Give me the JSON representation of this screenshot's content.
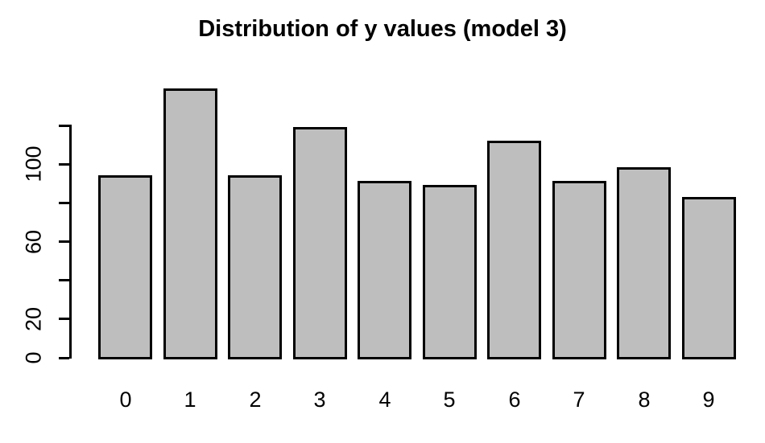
{
  "title": "Distribution of y values (model 3)",
  "chart_data": {
    "type": "bar",
    "title": "Distribution of y values (model 3)",
    "categories": [
      "0",
      "1",
      "2",
      "3",
      "4",
      "5",
      "6",
      "7",
      "8",
      "9"
    ],
    "values": [
      93,
      138,
      93,
      118,
      90,
      88,
      111,
      90,
      97,
      82
    ],
    "xlabel": "",
    "ylabel": "",
    "ylim": [
      0,
      120
    ],
    "yticks": [
      0,
      20,
      40,
      60,
      80,
      100,
      120
    ],
    "ytick_labels": [
      "0",
      "20",
      "",
      "60",
      "",
      "100",
      ""
    ],
    "grid": false,
    "legend": null,
    "bar_fill_color": "#bebebe",
    "bar_border_color": "#000000",
    "axis_color": "#000000",
    "text_color": "#000000",
    "background_color": "#ffffff"
  }
}
